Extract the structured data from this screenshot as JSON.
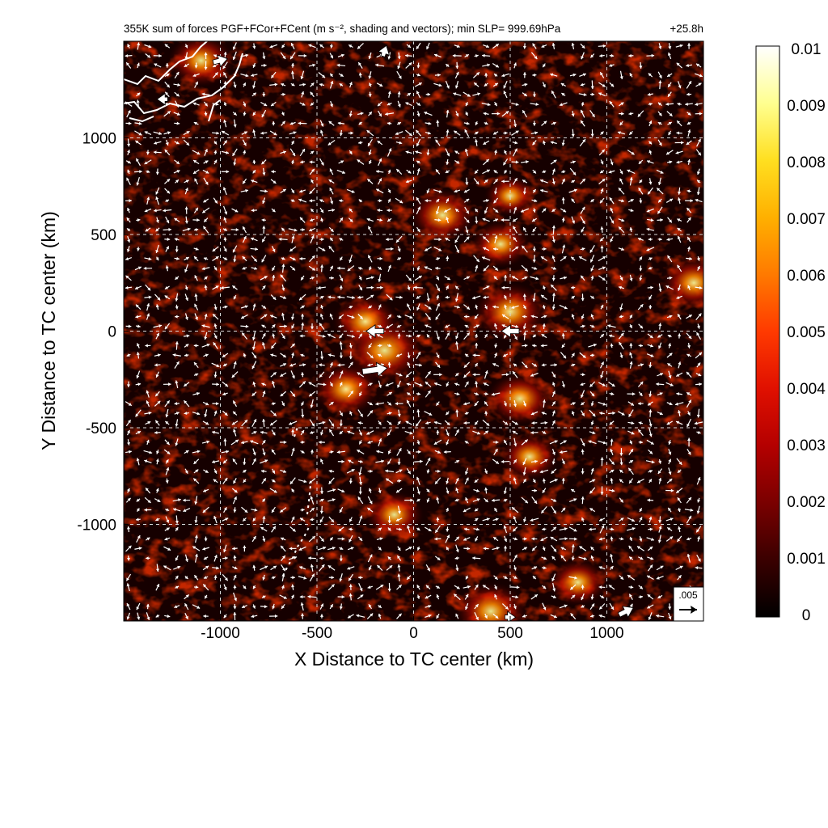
{
  "figure": {
    "title": "355K sum of forces PGF+FCor+FCent (m s⁻², shading and vectors); min SLP= 999.69hPa",
    "time_label": "+25.8h",
    "reference_vector_label": ".005"
  },
  "chart_data": {
    "type": "heatmap",
    "title": "355K sum of forces PGF+FCor+FCent (m s⁻², shading and vectors); min SLP= 999.69hPa",
    "xlabel": "X Distance to TC center (km)",
    "ylabel": "Y Distance to TC center (km)",
    "xlim": [
      -1500,
      1500
    ],
    "ylim": [
      -1500,
      1500
    ],
    "x_ticks": [
      -1000,
      -500,
      0,
      500,
      1000
    ],
    "y_ticks": [
      -1000,
      -500,
      0,
      500,
      1000
    ],
    "grid": true,
    "colorbar": {
      "min": 0,
      "max": 0.01,
      "ticks": [
        "0",
        "0.001",
        "0.002",
        "0.003",
        "0.004",
        "0.005",
        "0.006",
        "0.007",
        "0.008",
        "0.009",
        "0.01"
      ],
      "colors": [
        "#000000",
        "#3a0000",
        "#7a0000",
        "#b40000",
        "#e01000",
        "#ff3a00",
        "#ff7a00",
        "#ffb000",
        "#ffdf20",
        "#ffff90",
        "#ffffff"
      ]
    },
    "reference_vector": {
      "magnitude": 0.005,
      "label": ".005"
    },
    "hotspots": [
      {
        "x": -150,
        "y": -100,
        "magnitude": 0.008
      },
      {
        "x": -250,
        "y": 50,
        "magnitude": 0.006
      },
      {
        "x": -350,
        "y": -300,
        "magnitude": 0.006
      },
      {
        "x": 500,
        "y": 100,
        "magnitude": 0.007
      },
      {
        "x": 550,
        "y": -350,
        "magnitude": 0.006
      },
      {
        "x": 600,
        "y": -650,
        "magnitude": 0.005
      },
      {
        "x": 150,
        "y": 600,
        "magnitude": 0.006
      },
      {
        "x": 450,
        "y": 450,
        "magnitude": 0.005
      },
      {
        "x": -100,
        "y": -950,
        "magnitude": 0.005
      },
      {
        "x": 850,
        "y": -1300,
        "magnitude": 0.005
      },
      {
        "x": 400,
        "y": -1450,
        "magnitude": 0.007
      },
      {
        "x": 1450,
        "y": 250,
        "magnitude": 0.006
      },
      {
        "x": -1100,
        "y": 1400,
        "magnitude": 0.006
      },
      {
        "x": 500,
        "y": 700,
        "magnitude": 0.004
      }
    ],
    "large_vectors": [
      {
        "x": -1000,
        "y": 1400,
        "u": 0.004,
        "v": 0.001
      },
      {
        "x": -1300,
        "y": 1200,
        "u": -0.003,
        "v": 0.0
      },
      {
        "x": -200,
        "y": 0,
        "u": -0.005,
        "v": 0.0
      },
      {
        "x": -200,
        "y": -200,
        "u": 0.007,
        "v": 0.001
      },
      {
        "x": 500,
        "y": 0,
        "u": -0.005,
        "v": 0.0
      },
      {
        "x": -150,
        "y": 1450,
        "u": 0.001,
        "v": 0.003
      },
      {
        "x": 1100,
        "y": -1450,
        "u": 0.004,
        "v": 0.002
      },
      {
        "x": 500,
        "y": -1480,
        "u": 0.003,
        "v": 0.0
      }
    ]
  }
}
